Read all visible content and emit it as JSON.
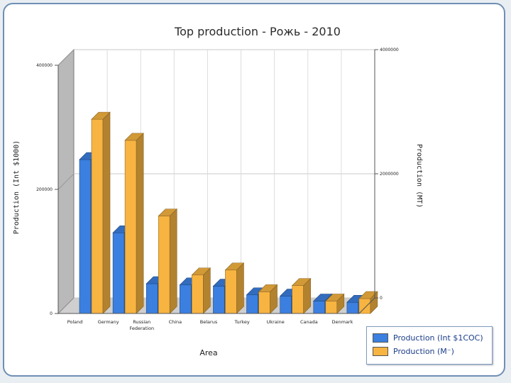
{
  "chart_data": {
    "type": "bar",
    "title": "Top production - Рожь - 2010",
    "xlabel": "Area",
    "ylabel_left": "Production (Int $1000)",
    "ylabel_right": "Production (MT)",
    "categories": [
      "Poland",
      "Germany",
      "Russian Federation",
      "China",
      "Belarus",
      "Turkey",
      "Ukraine",
      "Canada",
      "Denmark"
    ],
    "left_axis": {
      "min": 0,
      "max": 400000,
      "ticks": [
        "0",
        "200000",
        "400000"
      ]
    },
    "right_axis": {
      "min": 0,
      "max": 4000000,
      "ticks": [
        "0",
        "2000000",
        "4000000"
      ]
    },
    "series": [
      {
        "name": "Production (Int $1COC)",
        "axis": "left",
        "color": "#3b7fe0",
        "values": [
          248000,
          130000,
          48000,
          46000,
          44000,
          30000,
          28000,
          20000,
          18000
        ]
      },
      {
        "name": "Production (M⁻)",
        "axis": "right",
        "color": "#f7b441",
        "values": [
          3130000,
          2790000,
          1570000,
          620000,
          700000,
          350000,
          450000,
          200000,
          240000
        ]
      }
    ],
    "grid": true,
    "legend_position": "bottom-right"
  }
}
